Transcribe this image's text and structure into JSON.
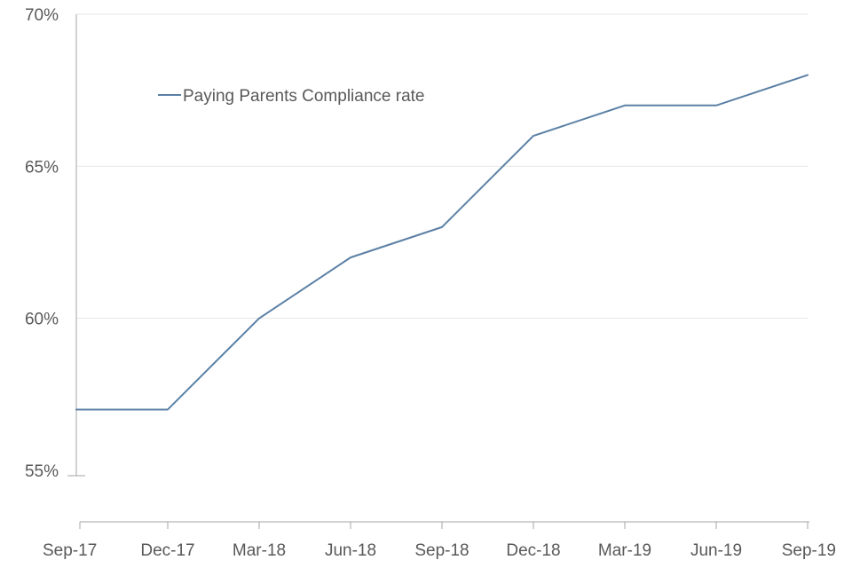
{
  "chart_data": {
    "type": "line",
    "title": "",
    "xlabel": "",
    "ylabel": "",
    "categories": [
      "Sep-17",
      "Dec-17",
      "Mar-18",
      "Jun-18",
      "Sep-18",
      "Dec-18",
      "Mar-19",
      "Jun-19",
      "Sep-19"
    ],
    "series": [
      {
        "name": "Paying Parents Compliance rate",
        "values": [
          57,
          57,
          60,
          62,
          63,
          66,
          67,
          67,
          68
        ],
        "color": "#5b80a5"
      }
    ],
    "ylim": [
      55,
      70
    ],
    "yticks": [
      55,
      60,
      65,
      70
    ],
    "ytick_labels": [
      "55%",
      "60%",
      "65%",
      "70%"
    ],
    "grid": true,
    "legend_position": "top-left"
  }
}
